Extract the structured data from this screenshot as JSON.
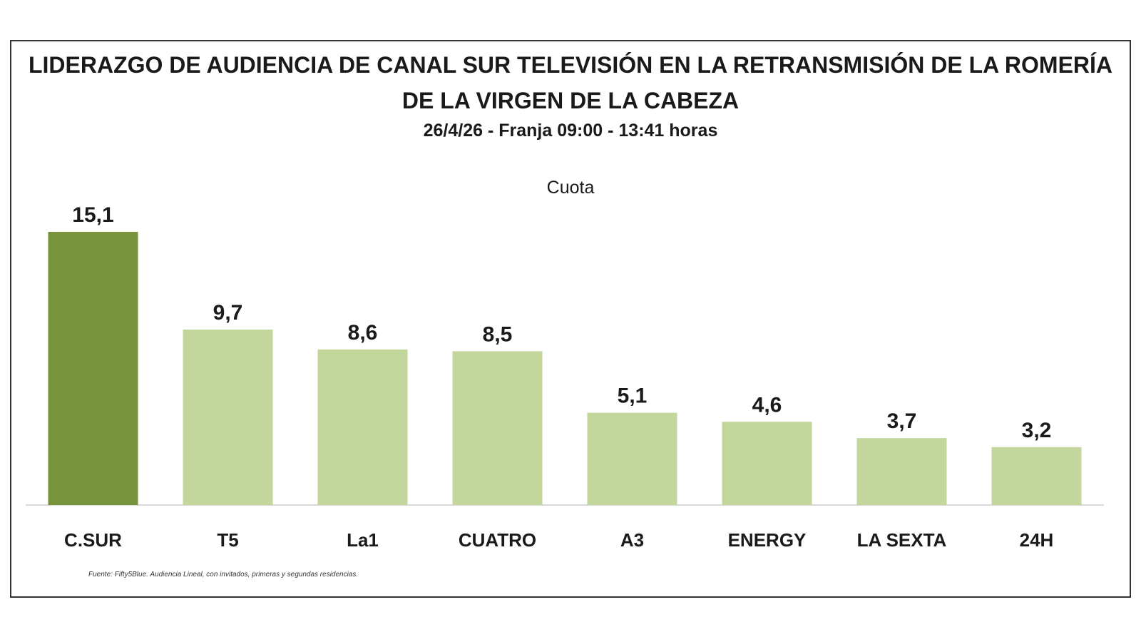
{
  "chart_data": {
    "type": "bar",
    "title": "LIDERAZGO DE AUDIENCIA DE CANAL SUR TELEVISIÓN EN LA RETRANSMISIÓN DE LA ROMERÍA DE LA VIRGEN DE LA CABEZA",
    "subtitle": "26/4/26 - Franja 09:00 - 13:41 horas",
    "categories": [
      "C.SUR",
      "T5",
      "La1",
      "CUATRO",
      "A3",
      "ENERGY",
      "LA SEXTA",
      "24H"
    ],
    "series": [
      {
        "name": "Cuota",
        "values": [
          15.1,
          9.7,
          8.6,
          8.5,
          5.1,
          4.6,
          3.7,
          3.2
        ],
        "value_labels": [
          "15,1",
          "9,7",
          "8,6",
          "8,5",
          "5,1",
          "4,6",
          "3,7",
          "3,2"
        ]
      }
    ],
    "ylim": [
      0,
      15.1
    ],
    "grid": false,
    "colors": {
      "highlight": "#77933c",
      "default": "#c3d69b",
      "axis": "#d9d9d9"
    },
    "highlight_category": "C.SUR",
    "source": "Fuente: Fifty5Blue. Audiencia Lineal, con invitados, primeras y segundas residencias."
  }
}
